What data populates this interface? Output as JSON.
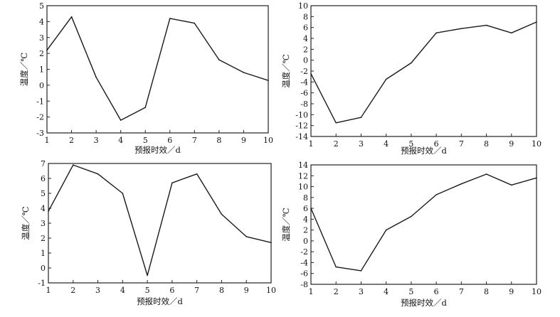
{
  "chart_data": [
    {
      "type": "line",
      "xlabel": "预报时效／d",
      "ylabel": "温度／℃",
      "xlim": [
        1,
        10
      ],
      "ylim": [
        -3,
        5
      ],
      "x": [
        1,
        2,
        3,
        4,
        5,
        6,
        7,
        8,
        9,
        10
      ],
      "xticks": [
        "1",
        "2",
        "3",
        "4",
        "5",
        "6",
        "7",
        "8",
        "9",
        "10"
      ],
      "yticks": [
        "-3",
        "-2",
        "-1",
        "0",
        "1",
        "2",
        "3",
        "4",
        "5"
      ],
      "series": [
        {
          "values": [
            2.2,
            4.3,
            0.5,
            -2.2,
            -1.4,
            4.2,
            3.9,
            1.6,
            0.8,
            0.3
          ]
        }
      ]
    },
    {
      "type": "line",
      "xlabel": "预报时效／d",
      "ylabel": "温度／℃",
      "xlim": [
        1,
        10
      ],
      "ylim": [
        -14,
        10
      ],
      "x": [
        1,
        2,
        3,
        4,
        5,
        6,
        7,
        8,
        9,
        10
      ],
      "xticks": [
        "1",
        "2",
        "3",
        "4",
        "5",
        "6",
        "7",
        "8",
        "9",
        "10"
      ],
      "yticks": [
        "-14",
        "-12",
        "-10",
        "-8",
        "-6",
        "-4",
        "-2",
        "0",
        "2",
        "4",
        "6",
        "8",
        "10"
      ],
      "series": [
        {
          "values": [
            -2.5,
            -11.5,
            -10.5,
            -3.5,
            -0.5,
            5.0,
            5.8,
            6.4,
            5.0,
            7.0
          ]
        }
      ]
    },
    {
      "type": "line",
      "xlabel": "预报时效／d",
      "ylabel": "温度／℃",
      "xlim": [
        1,
        10
      ],
      "ylim": [
        -1,
        7
      ],
      "x": [
        1,
        2,
        3,
        4,
        5,
        6,
        7,
        8,
        9,
        10
      ],
      "xticks": [
        "1",
        "2",
        "3",
        "4",
        "5",
        "6",
        "7",
        "8",
        "9",
        "10"
      ],
      "yticks": [
        "-1",
        "0",
        "1",
        "2",
        "3",
        "4",
        "5",
        "6",
        "7"
      ],
      "series": [
        {
          "values": [
            3.8,
            6.9,
            6.3,
            5.0,
            -0.5,
            5.7,
            6.3,
            3.6,
            2.1,
            1.7
          ]
        }
      ]
    },
    {
      "type": "line",
      "xlabel": "预报时效／d",
      "ylabel": "温度／℃",
      "xlim": [
        1,
        10
      ],
      "ylim": [
        -8,
        14
      ],
      "x": [
        1,
        2,
        3,
        4,
        5,
        6,
        7,
        8,
        9,
        10
      ],
      "xticks": [
        "1",
        "2",
        "3",
        "4",
        "5",
        "6",
        "7",
        "8",
        "9",
        "10"
      ],
      "yticks": [
        "-8",
        "-6",
        "-4",
        "-2",
        "0",
        "2",
        "4",
        "6",
        "8",
        "10",
        "12",
        "14"
      ],
      "series": [
        {
          "values": [
            6.0,
            -4.8,
            -5.5,
            2.0,
            4.5,
            8.5,
            10.5,
            12.3,
            10.3,
            11.6
          ]
        }
      ]
    }
  ]
}
